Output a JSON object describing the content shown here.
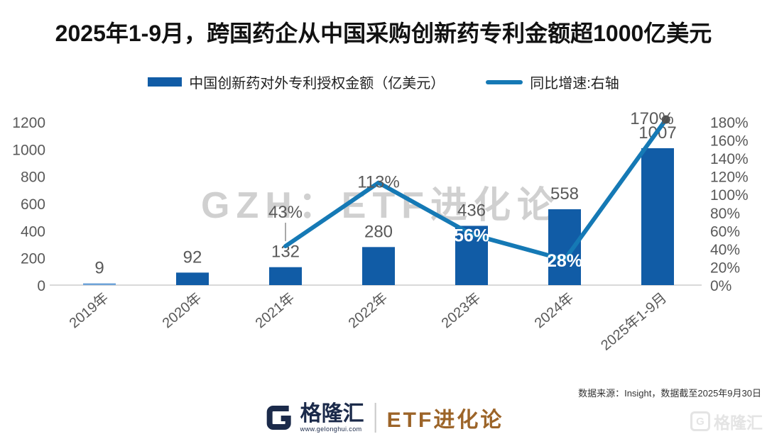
{
  "title": "2025年1-9月，跨国药企从中国采购创新药专利金额超1000亿美元",
  "legend": {
    "bars_label": "中国创新药对外专利授权金额（亿美元）",
    "line_label": "同比增速:右轴"
  },
  "watermark_center": "GZH：ETF进化论",
  "watermark_corner": {
    "mark": "G",
    "text": "格隆汇"
  },
  "source_note": "数据来源：Insight，数据截至2025年9月30日",
  "footer": {
    "brand_mark": "G",
    "brand_cn": "格隆汇",
    "brand_url": "www.gelonghui.com",
    "account_name": "ETF进化论"
  },
  "chart_data": {
    "type": "bar",
    "subtype": "bar+line-combo",
    "categories": [
      "2019年",
      "2020年",
      "2021年",
      "2022年",
      "2023年",
      "2024年",
      "2025年1-9月"
    ],
    "series": [
      {
        "name": "中国创新药对外专利授权金额（亿美元）",
        "type": "bar",
        "axis": "left",
        "values": [
          9,
          92,
          132,
          280,
          436,
          558,
          1007
        ]
      },
      {
        "name": "同比增速:右轴",
        "type": "line",
        "axis": "right",
        "unit": "%",
        "values": [
          null,
          null,
          43,
          113,
          56,
          28,
          170
        ]
      }
    ],
    "left_axis": {
      "min": 0,
      "max": 1200,
      "step": 200,
      "ticks": [
        "0",
        "200",
        "400",
        "600",
        "800",
        "1000",
        "1200"
      ]
    },
    "right_axis": {
      "min": 0,
      "max": 180,
      "step": 20,
      "ticks": [
        "0%",
        "20%",
        "40%",
        "60%",
        "80%",
        "100%",
        "120%",
        "140%",
        "160%",
        "180%"
      ]
    },
    "grid": "off",
    "legend_position": "top-center",
    "line_label_styles": [
      null,
      null,
      "gray-above-leader",
      "gray-above",
      "white-on-point",
      "white-on-point",
      "gray-above-end"
    ],
    "colors": {
      "bar": "#115CA6",
      "bar_first": "#6FA3D8",
      "line": "#1579B5",
      "label_gray": "#595959",
      "label_white": "#FFFFFF",
      "axis_line": "#D9D9D9",
      "end_dot": "#4F4F4F"
    }
  }
}
